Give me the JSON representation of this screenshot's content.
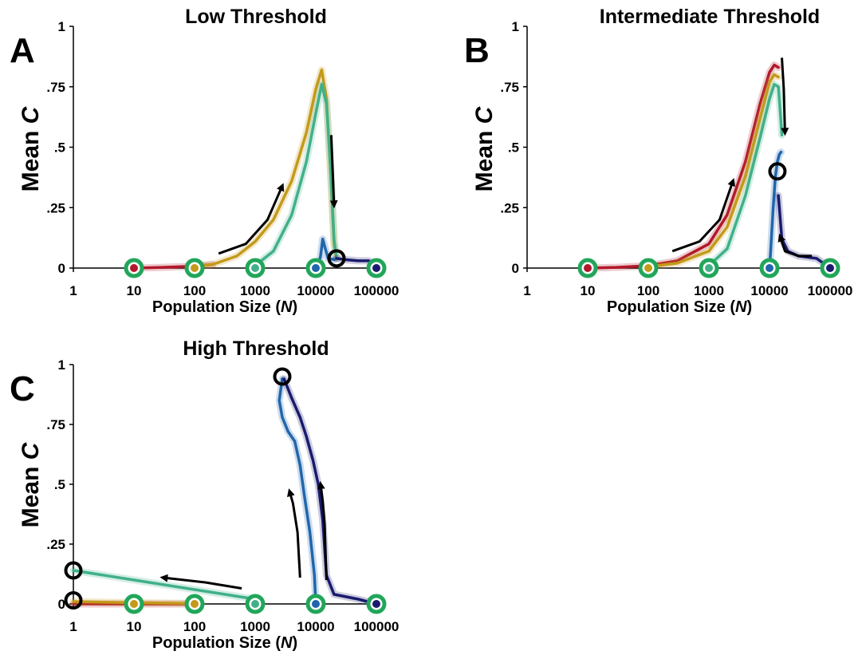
{
  "chart_data": [
    {
      "type": "line",
      "panel_label": "A",
      "title": "Low Threshold",
      "xlabel_main": "Population Size (",
      "xlabel_var": "N",
      "xlabel_end": ")",
      "ylabel_main": "Mean ",
      "ylabel_var": "C",
      "x_scale": "log",
      "xlim": [
        1,
        100000
      ],
      "ylim": [
        0,
        1
      ],
      "x_ticks": [
        "1",
        "10",
        "100",
        "1000",
        "10000",
        "100000"
      ],
      "y_ticks": [
        "0",
        ".25",
        ".5",
        ".75",
        "1"
      ],
      "y_tick_values": [
        0,
        0.25,
        0.5,
        0.75,
        1
      ],
      "series": [
        {
          "color": "#b2182b",
          "x": [
            10,
            30,
            100,
            200
          ],
          "y": [
            0,
            0.003,
            0.008,
            0.015
          ]
        },
        {
          "color": "#c49a1a",
          "x": [
            100,
            200,
            500,
            1000,
            2000,
            4000,
            7000,
            10000,
            12500,
            15000,
            17500,
            20000,
            22000
          ],
          "y": [
            0.006,
            0.015,
            0.05,
            0.11,
            0.2,
            0.36,
            0.56,
            0.74,
            0.82,
            0.7,
            0.4,
            0.1,
            0.04
          ]
        },
        {
          "color": "#41b089",
          "x": [
            1000,
            2000,
            4000,
            7000,
            10000,
            12500,
            15000,
            17500,
            20000,
            22000
          ],
          "y": [
            0.01,
            0.07,
            0.22,
            0.44,
            0.64,
            0.76,
            0.68,
            0.42,
            0.12,
            0.04
          ]
        },
        {
          "color": "#2166ac",
          "x": [
            10000,
            11000,
            12000,
            13000,
            14000,
            16000,
            20000
          ],
          "y": [
            0,
            0.01,
            0.05,
            0.12,
            0.09,
            0.04,
            0.035
          ]
        },
        {
          "color": "#1a1a6e",
          "x": [
            22000,
            30000,
            50000,
            75000,
            100000
          ],
          "y": [
            0.04,
            0.035,
            0.03,
            0.03,
            0
          ]
        }
      ],
      "start_points": [
        {
          "x": 10,
          "y": 0,
          "color": "#b2182b"
        },
        {
          "x": 100,
          "y": 0,
          "color": "#c49a1a"
        },
        {
          "x": 1000,
          "y": 0,
          "color": "#41b089"
        },
        {
          "x": 10000,
          "y": 0,
          "color": "#2166ac"
        },
        {
          "x": 100000,
          "y": 0,
          "color": "#1a1a6e"
        }
      ],
      "end_markers": [
        {
          "x": 22000,
          "y": 0.04
        }
      ],
      "arrows": [
        {
          "x": [
            250,
            700,
            1600,
            2800
          ],
          "y": [
            0.06,
            0.1,
            0.2,
            0.34
          ]
        },
        {
          "x": [
            18000,
            19000,
            20000
          ],
          "y": [
            0.55,
            0.4,
            0.26
          ]
        }
      ],
      "colors": {
        "start_ring": "#21a65a",
        "end_ring": "#000000"
      }
    },
    {
      "type": "line",
      "panel_label": "B",
      "title": "Intermediate Threshold",
      "xlabel_main": "Population Size (",
      "xlabel_var": "N",
      "xlabel_end": ")",
      "ylabel_main": "Mean ",
      "ylabel_var": "C",
      "x_scale": "log",
      "xlim": [
        1,
        100000
      ],
      "ylim": [
        0,
        1
      ],
      "x_ticks": [
        "1",
        "10",
        "100",
        "1000",
        "10000",
        "100000"
      ],
      "y_ticks": [
        "0",
        ".25",
        ".5",
        ".75",
        "1"
      ],
      "y_tick_values": [
        0,
        0.25,
        0.5,
        0.75,
        1
      ],
      "series": [
        {
          "color": "#b2182b",
          "x": [
            10,
            30,
            100,
            300,
            1000,
            2000,
            4000,
            7000,
            10000,
            12000,
            14000
          ],
          "y": [
            0,
            0.003,
            0.01,
            0.03,
            0.1,
            0.22,
            0.44,
            0.68,
            0.81,
            0.84,
            0.83
          ]
        },
        {
          "color": "#c49a1a",
          "x": [
            100,
            300,
            1000,
            2000,
            4000,
            7000,
            10000,
            12000,
            14000
          ],
          "y": [
            0.006,
            0.02,
            0.07,
            0.17,
            0.38,
            0.62,
            0.77,
            0.8,
            0.79
          ]
        },
        {
          "color": "#41b089",
          "x": [
            1000,
            2000,
            4000,
            7000,
            10000,
            12000,
            14000,
            15000,
            16000
          ],
          "y": [
            0.01,
            0.08,
            0.3,
            0.54,
            0.7,
            0.76,
            0.75,
            0.65,
            0.55
          ]
        },
        {
          "color": "#2166ac",
          "x": [
            10000,
            10500,
            11500,
            12500,
            13500,
            14500,
            15500
          ],
          "y": [
            0,
            0.08,
            0.25,
            0.38,
            0.44,
            0.47,
            0.48
          ]
        },
        {
          "color": "#1a1a6e",
          "x": [
            100000,
            60000,
            30000,
            20000,
            16000,
            14000
          ],
          "y": [
            0,
            0.04,
            0.05,
            0.07,
            0.12,
            0.3
          ]
        }
      ],
      "start_points": [
        {
          "x": 10,
          "y": 0,
          "color": "#b2182b"
        },
        {
          "x": 100,
          "y": 0,
          "color": "#c49a1a"
        },
        {
          "x": 1000,
          "y": 0,
          "color": "#41b089"
        },
        {
          "x": 10000,
          "y": 0,
          "color": "#2166ac"
        },
        {
          "x": 100000,
          "y": 0,
          "color": "#1a1a6e"
        }
      ],
      "end_markers": [
        {
          "x": 13500,
          "y": 0.4
        }
      ],
      "arrows": [
        {
          "x": [
            250,
            700,
            1500,
            2500
          ],
          "y": [
            0.07,
            0.11,
            0.2,
            0.36
          ]
        },
        {
          "x": [
            16000,
            17200,
            18000
          ],
          "y": [
            0.87,
            0.74,
            0.56
          ]
        },
        {
          "x": [
            50000,
            30000,
            18000,
            15000
          ],
          "y": [
            0.05,
            0.05,
            0.07,
            0.13
          ]
        }
      ],
      "colors": {
        "start_ring": "#21a65a",
        "end_ring": "#000000"
      }
    },
    {
      "type": "line",
      "panel_label": "C",
      "title": "High Threshold",
      "xlabel_main": "Population Size (",
      "xlabel_var": "N",
      "xlabel_end": ")",
      "ylabel_main": "Mean ",
      "ylabel_var": "C",
      "x_scale": "log",
      "xlim": [
        1,
        100000
      ],
      "ylim": [
        0,
        1
      ],
      "x_ticks": [
        "1",
        "10",
        "100",
        "1000",
        "10000",
        "100000"
      ],
      "y_ticks": [
        "0",
        ".25",
        ".5",
        ".75",
        "1"
      ],
      "y_tick_values": [
        0,
        0.25,
        0.5,
        0.75,
        1
      ],
      "series": [
        {
          "color": "#b2182b",
          "x": [
            1,
            10,
            100
          ],
          "y": [
            0,
            0,
            0
          ]
        },
        {
          "color": "#c49a1a",
          "x": [
            1,
            10,
            100
          ],
          "y": [
            0.01,
            0.005,
            0.002
          ]
        },
        {
          "color": "#41b089",
          "x": [
            1,
            10,
            100,
            1000
          ],
          "y": [
            0.14,
            0.1,
            0.06,
            0.02
          ]
        },
        {
          "color": "#2166ac",
          "x": [
            10000,
            9500,
            8000,
            6500,
            5500,
            4500,
            3500,
            2800,
            2500,
            2800
          ],
          "y": [
            0,
            0.12,
            0.3,
            0.45,
            0.58,
            0.68,
            0.72,
            0.78,
            0.85,
            0.94
          ]
        },
        {
          "color": "#1a1a6e",
          "x": [
            100000,
            50000,
            20000,
            15000,
            13000,
            11000,
            9000,
            7000,
            5500,
            4000,
            3000
          ],
          "y": [
            0,
            0.02,
            0.04,
            0.12,
            0.35,
            0.5,
            0.6,
            0.7,
            0.78,
            0.86,
            0.94
          ]
        }
      ],
      "start_points": [
        {
          "x": 10,
          "y": 0,
          "color": "#c49a1a"
        },
        {
          "x": 100,
          "y": 0,
          "color": "#c49a1a"
        },
        {
          "x": 1000,
          "y": 0,
          "color": "#41b089"
        },
        {
          "x": 10000,
          "y": 0,
          "color": "#2166ac"
        },
        {
          "x": 100000,
          "y": 0,
          "color": "#1a1a6e"
        }
      ],
      "end_markers": [
        {
          "x": 1,
          "y": 0.14
        },
        {
          "x": 1,
          "y": 0.015
        },
        {
          "x": 2800,
          "y": 0.95
        }
      ],
      "arrows": [
        {
          "x": [
            600,
            150,
            30
          ],
          "y": [
            0.065,
            0.09,
            0.11
          ]
        },
        {
          "x": [
            5500,
            5000,
            4200,
            3700
          ],
          "y": [
            0.11,
            0.3,
            0.42,
            0.47
          ]
        },
        {
          "x": [
            15000,
            14000,
            13000,
            12000
          ],
          "y": [
            0.1,
            0.33,
            0.43,
            0.5
          ]
        }
      ],
      "colors": {
        "start_ring": "#21a65a",
        "end_ring": "#000000"
      }
    }
  ]
}
